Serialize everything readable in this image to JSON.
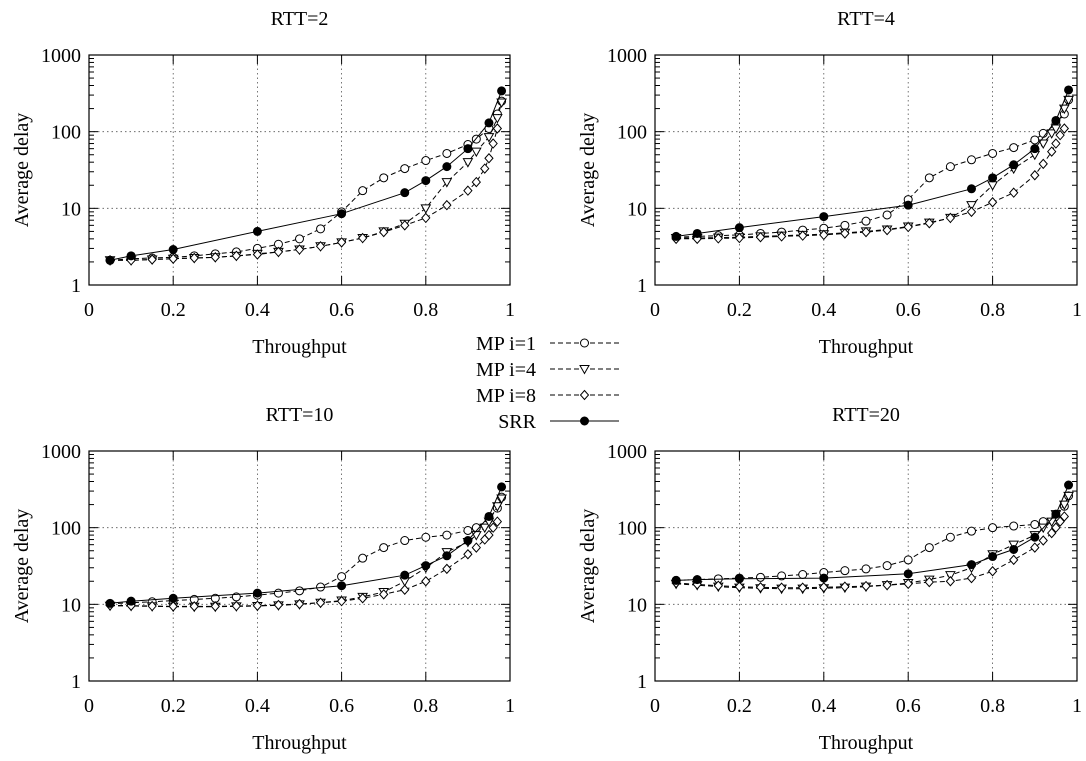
{
  "legend": {
    "placement": "center",
    "entries": [
      {
        "label": "MP i=1",
        "marker": "circle-open",
        "dash": "dashed"
      },
      {
        "label": "MP i=4",
        "marker": "triangle-down-open",
        "dash": "dashed"
      },
      {
        "label": "MP i=8",
        "marker": "diamond-open",
        "dash": "dashed"
      },
      {
        "label": "SRR",
        "marker": "circle-filled",
        "dash": "solid"
      }
    ]
  },
  "chart_data": [
    {
      "type": "line",
      "title": "RTT=2",
      "xlabel": "Throughput",
      "ylabel": "Average delay",
      "xlim": [
        0,
        1
      ],
      "ylim": [
        1,
        1000
      ],
      "yscale": "log",
      "xticks": [
        "0",
        "0.2",
        "0.4",
        "0.6",
        "0.8",
        "1"
      ],
      "yticks": [
        "1",
        "10",
        "100",
        "1000"
      ],
      "grid": true,
      "series": [
        {
          "name": "MP i=1",
          "x": [
            0.05,
            0.1,
            0.15,
            0.2,
            0.25,
            0.3,
            0.35,
            0.4,
            0.45,
            0.5,
            0.55,
            0.6,
            0.65,
            0.7,
            0.75,
            0.8,
            0.85,
            0.9,
            0.92,
            0.95,
            0.97,
            0.98
          ],
          "y": [
            2.1,
            2.2,
            2.25,
            2.3,
            2.4,
            2.55,
            2.7,
            3.0,
            3.4,
            4.0,
            5.4,
            9.0,
            17,
            25,
            33,
            42,
            52,
            68,
            80,
            110,
            170,
            250
          ]
        },
        {
          "name": "MP i=4",
          "x": [
            0.05,
            0.1,
            0.15,
            0.2,
            0.25,
            0.3,
            0.35,
            0.4,
            0.45,
            0.5,
            0.55,
            0.6,
            0.65,
            0.7,
            0.75,
            0.8,
            0.85,
            0.9,
            0.92,
            0.95,
            0.97,
            0.98
          ],
          "y": [
            2.1,
            2.1,
            2.15,
            2.2,
            2.25,
            2.3,
            2.4,
            2.55,
            2.7,
            2.9,
            3.2,
            3.6,
            4.1,
            5.0,
            6.3,
            10,
            22,
            40,
            55,
            85,
            150,
            240
          ]
        },
        {
          "name": "MP i=8",
          "x": [
            0.05,
            0.1,
            0.15,
            0.2,
            0.25,
            0.3,
            0.35,
            0.4,
            0.45,
            0.5,
            0.55,
            0.6,
            0.65,
            0.7,
            0.75,
            0.8,
            0.85,
            0.9,
            0.92,
            0.94,
            0.95,
            0.96,
            0.97
          ],
          "y": [
            2.1,
            2.1,
            2.15,
            2.2,
            2.25,
            2.3,
            2.4,
            2.5,
            2.7,
            2.9,
            3.2,
            3.6,
            4.1,
            4.9,
            6.0,
            7.5,
            11,
            17,
            22,
            33,
            45,
            70,
            110
          ]
        },
        {
          "name": "SRR",
          "x": [
            0.05,
            0.1,
            0.2,
            0.4,
            0.6,
            0.75,
            0.8,
            0.85,
            0.9,
            0.95,
            0.98
          ],
          "y": [
            2.1,
            2.4,
            2.9,
            5.0,
            8.5,
            16,
            23,
            35,
            60,
            130,
            340
          ]
        }
      ]
    },
    {
      "type": "line",
      "title": "RTT=4",
      "xlabel": "Throughput",
      "ylabel": "Average delay",
      "xlim": [
        0,
        1
      ],
      "ylim": [
        1,
        1000
      ],
      "yscale": "log",
      "xticks": [
        "0",
        "0.2",
        "0.4",
        "0.6",
        "0.8",
        "1"
      ],
      "yticks": [
        "1",
        "10",
        "100",
        "1000"
      ],
      "grid": true,
      "series": [
        {
          "name": "MP i=1",
          "x": [
            0.05,
            0.1,
            0.15,
            0.2,
            0.25,
            0.3,
            0.35,
            0.4,
            0.45,
            0.5,
            0.55,
            0.6,
            0.65,
            0.7,
            0.75,
            0.8,
            0.85,
            0.9,
            0.92,
            0.95,
            0.97,
            0.98
          ],
          "y": [
            4.2,
            4.3,
            4.4,
            4.5,
            4.7,
            4.9,
            5.2,
            5.5,
            6.0,
            6.8,
            8.2,
            13,
            25,
            35,
            43,
            52,
            62,
            78,
            95,
            125,
            170,
            260
          ]
        },
        {
          "name": "MP i=4",
          "x": [
            0.05,
            0.1,
            0.15,
            0.2,
            0.25,
            0.3,
            0.35,
            0.4,
            0.45,
            0.5,
            0.55,
            0.6,
            0.65,
            0.7,
            0.75,
            0.8,
            0.85,
            0.9,
            0.92,
            0.94,
            0.95,
            0.97,
            0.98
          ],
          "y": [
            4.1,
            4.1,
            4.15,
            4.2,
            4.3,
            4.4,
            4.5,
            4.6,
            4.8,
            5.0,
            5.3,
            5.8,
            6.5,
            7.5,
            11,
            20,
            33,
            50,
            70,
            95,
            110,
            200,
            260
          ]
        },
        {
          "name": "MP i=8",
          "x": [
            0.05,
            0.1,
            0.15,
            0.2,
            0.25,
            0.3,
            0.35,
            0.4,
            0.45,
            0.5,
            0.55,
            0.6,
            0.65,
            0.7,
            0.75,
            0.8,
            0.85,
            0.9,
            0.92,
            0.94,
            0.95,
            0.96,
            0.97
          ],
          "y": [
            4.0,
            4.0,
            4.05,
            4.1,
            4.2,
            4.3,
            4.4,
            4.5,
            4.7,
            4.9,
            5.2,
            5.7,
            6.4,
            7.5,
            9.0,
            12,
            16,
            27,
            38,
            55,
            70,
            90,
            110
          ]
        },
        {
          "name": "SRR",
          "x": [
            0.05,
            0.1,
            0.2,
            0.4,
            0.6,
            0.75,
            0.8,
            0.85,
            0.9,
            0.95,
            0.98
          ],
          "y": [
            4.3,
            4.7,
            5.6,
            7.8,
            11,
            18,
            25,
            37,
            60,
            140,
            350
          ]
        }
      ]
    },
    {
      "type": "line",
      "title": "RTT=10",
      "xlabel": "Throughput",
      "ylabel": "Average delay",
      "xlim": [
        0,
        1
      ],
      "ylim": [
        1,
        1000
      ],
      "yscale": "log",
      "xticks": [
        "0",
        "0.2",
        "0.4",
        "0.6",
        "0.8",
        "1"
      ],
      "yticks": [
        "1",
        "10",
        "100",
        "1000"
      ],
      "grid": true,
      "series": [
        {
          "name": "MP i=1",
          "x": [
            0.05,
            0.1,
            0.15,
            0.2,
            0.25,
            0.3,
            0.35,
            0.4,
            0.45,
            0.5,
            0.55,
            0.6,
            0.65,
            0.7,
            0.75,
            0.8,
            0.85,
            0.9,
            0.92,
            0.95,
            0.97,
            0.98
          ],
          "y": [
            10.2,
            10.5,
            10.8,
            11.2,
            11.6,
            12.0,
            12.5,
            13.2,
            14.0,
            15.0,
            16.8,
            23,
            40,
            55,
            68,
            75,
            80,
            92,
            100,
            130,
            180,
            250
          ]
        },
        {
          "name": "MP i=4",
          "x": [
            0.05,
            0.1,
            0.15,
            0.2,
            0.25,
            0.3,
            0.35,
            0.4,
            0.45,
            0.5,
            0.55,
            0.6,
            0.65,
            0.7,
            0.75,
            0.8,
            0.85,
            0.9,
            0.92,
            0.94,
            0.95,
            0.97,
            0.98
          ],
          "y": [
            9.6,
            9.5,
            9.4,
            9.3,
            9.3,
            9.3,
            9.4,
            9.5,
            9.7,
            10.0,
            10.5,
            11.2,
            12.5,
            14.5,
            20,
            30,
            48,
            65,
            80,
            100,
            120,
            190,
            240
          ]
        },
        {
          "name": "MP i=8",
          "x": [
            0.05,
            0.1,
            0.15,
            0.2,
            0.25,
            0.3,
            0.35,
            0.4,
            0.45,
            0.5,
            0.55,
            0.6,
            0.65,
            0.7,
            0.75,
            0.8,
            0.85,
            0.9,
            0.92,
            0.94,
            0.95,
            0.96,
            0.97
          ],
          "y": [
            9.7,
            9.6,
            9.5,
            9.4,
            9.4,
            9.4,
            9.5,
            9.6,
            9.8,
            10.1,
            10.5,
            11.0,
            12.0,
            13.5,
            15.5,
            20,
            29,
            45,
            55,
            70,
            80,
            100,
            120
          ]
        },
        {
          "name": "SRR",
          "x": [
            0.05,
            0.1,
            0.2,
            0.4,
            0.6,
            0.75,
            0.8,
            0.85,
            0.9,
            0.95,
            0.98
          ],
          "y": [
            10.3,
            11.0,
            12.0,
            14.0,
            17.5,
            24,
            32,
            43,
            68,
            140,
            340
          ]
        }
      ]
    },
    {
      "type": "line",
      "title": "RTT=20",
      "xlabel": "Throughput",
      "ylabel": "Average delay",
      "xlim": [
        0,
        1
      ],
      "ylim": [
        1,
        1000
      ],
      "yscale": "log",
      "xticks": [
        "0",
        "0.2",
        "0.4",
        "0.6",
        "0.8",
        "1"
      ],
      "yticks": [
        "1",
        "10",
        "100",
        "1000"
      ],
      "grid": true,
      "series": [
        {
          "name": "MP i=1",
          "x": [
            0.05,
            0.1,
            0.15,
            0.2,
            0.25,
            0.3,
            0.35,
            0.4,
            0.45,
            0.5,
            0.55,
            0.6,
            0.65,
            0.7,
            0.75,
            0.8,
            0.85,
            0.9,
            0.92,
            0.95,
            0.97,
            0.98
          ],
          "y": [
            20.5,
            21,
            21.5,
            22,
            22.5,
            23.5,
            24.5,
            26,
            27.5,
            29,
            32,
            38,
            55,
            75,
            90,
            100,
            105,
            110,
            120,
            140,
            190,
            260
          ]
        },
        {
          "name": "MP i=4",
          "x": [
            0.05,
            0.1,
            0.15,
            0.2,
            0.25,
            0.3,
            0.35,
            0.4,
            0.45,
            0.5,
            0.55,
            0.6,
            0.65,
            0.7,
            0.75,
            0.8,
            0.85,
            0.9,
            0.92,
            0.94,
            0.95,
            0.97,
            0.98
          ],
          "y": [
            18.5,
            17.8,
            17.0,
            16.5,
            16.2,
            16.0,
            16.0,
            16.2,
            16.5,
            17.0,
            17.8,
            19.0,
            21,
            24,
            30,
            45,
            60,
            80,
            100,
            120,
            150,
            200,
            260
          ]
        },
        {
          "name": "MP i=8",
          "x": [
            0.05,
            0.1,
            0.15,
            0.2,
            0.25,
            0.3,
            0.35,
            0.4,
            0.45,
            0.5,
            0.55,
            0.6,
            0.65,
            0.7,
            0.75,
            0.8,
            0.85,
            0.9,
            0.92,
            0.94,
            0.95,
            0.96,
            0.97
          ],
          "y": [
            19.0,
            18.2,
            17.5,
            17.0,
            16.7,
            16.5,
            16.5,
            16.7,
            17.0,
            17.3,
            17.8,
            18.5,
            19.5,
            20,
            22,
            27,
            38,
            55,
            68,
            85,
            100,
            120,
            140
          ]
        },
        {
          "name": "SRR",
          "x": [
            0.05,
            0.1,
            0.2,
            0.4,
            0.6,
            0.75,
            0.8,
            0.85,
            0.9,
            0.95,
            0.98
          ],
          "y": [
            20.5,
            21,
            21.5,
            22,
            25,
            33,
            42,
            52,
            75,
            150,
            360
          ]
        }
      ]
    }
  ]
}
